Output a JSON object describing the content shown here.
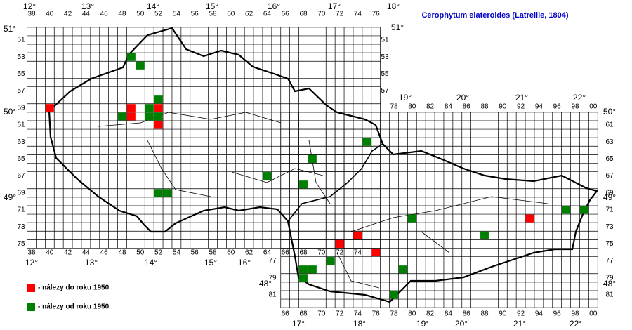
{
  "title": "Cerophytum elateroides (Latreille, 1804)",
  "longitudes": [
    "12°",
    "13°",
    "14°",
    "15°",
    "16°",
    "17°",
    "18°",
    "19°",
    "20°",
    "21°",
    "22°"
  ],
  "latitudes": [
    "51°",
    "50°",
    "49°",
    "48°"
  ],
  "columns": [
    38,
    40,
    42,
    44,
    46,
    48,
    50,
    52,
    54,
    56,
    58,
    60,
    62,
    64,
    66,
    68,
    70,
    72,
    74,
    76,
    78,
    80,
    82,
    84,
    86,
    88,
    90,
    92,
    94,
    96,
    98,
    {
      "value": 100,
      "label": "00"
    }
  ],
  "rows": [
    51,
    53,
    55,
    57,
    59,
    61,
    63,
    65,
    67,
    69,
    71,
    73,
    75,
    77,
    79,
    81
  ],
  "legend": [
    {
      "label": "- nálezy do roku 1950",
      "color": "#ff0000"
    },
    {
      "label": "- nálezy od roku 1950",
      "color": "#008000"
    }
  ],
  "records": [
    {
      "col": 40,
      "row": 59,
      "period": 0
    },
    {
      "col": 49,
      "row": 59,
      "period": 0
    },
    {
      "col": 49,
      "row": 60,
      "period": 0
    },
    {
      "col": 52,
      "row": 59,
      "period": 0
    },
    {
      "col": 52,
      "row": 61,
      "period": 0
    },
    {
      "col": 74,
      "row": 74,
      "period": 0
    },
    {
      "col": 72,
      "row": 75,
      "period": 0
    },
    {
      "col": 76,
      "row": 76,
      "period": 0
    },
    {
      "col": 93,
      "row": 72,
      "period": 0
    },
    {
      "col": 49,
      "row": 53,
      "period": 1
    },
    {
      "col": 50,
      "row": 54,
      "period": 1
    },
    {
      "col": 48,
      "row": 60,
      "period": 1
    },
    {
      "col": 51,
      "row": 59,
      "period": 1
    },
    {
      "col": 51,
      "row": 60,
      "period": 1
    },
    {
      "col": 52,
      "row": 58,
      "period": 1
    },
    {
      "col": 52,
      "row": 60,
      "period": 1
    },
    {
      "col": 52,
      "row": 69,
      "period": 1
    },
    {
      "col": 53,
      "row": 69,
      "period": 1
    },
    {
      "col": 64,
      "row": 67,
      "period": 1
    },
    {
      "col": 68,
      "row": 68,
      "period": 1
    },
    {
      "col": 69,
      "row": 65,
      "period": 1
    },
    {
      "col": 75,
      "row": 63,
      "period": 1
    },
    {
      "col": 80,
      "row": 72,
      "period": 1
    },
    {
      "col": 71,
      "row": 77,
      "period": 1
    },
    {
      "col": 68,
      "row": 78,
      "period": 1
    },
    {
      "col": 69,
      "row": 78,
      "period": 1
    },
    {
      "col": 68,
      "row": 79,
      "period": 1
    },
    {
      "col": 79,
      "row": 78,
      "period": 1
    },
    {
      "col": 78,
      "row": 81,
      "period": 1
    },
    {
      "col": 88,
      "row": 74,
      "period": 1
    },
    {
      "col": 97,
      "row": 71,
      "period": 1
    },
    {
      "col": 99,
      "row": 71,
      "period": 1
    }
  ]
}
